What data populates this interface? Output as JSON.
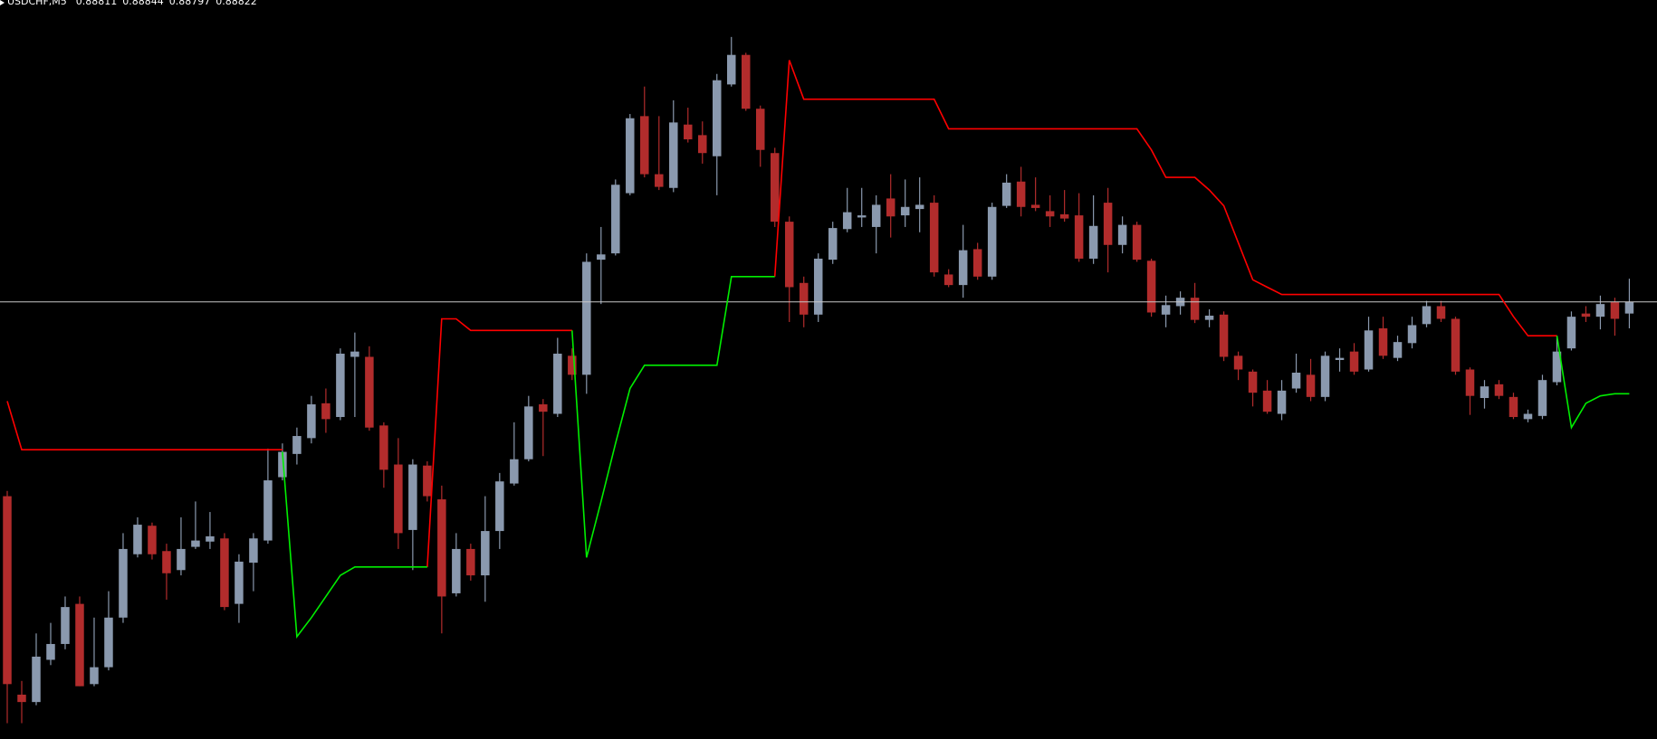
{
  "chart_data": {
    "type": "candlestick",
    "title": "USDCHF,M5",
    "header_values": [
      0.88811,
      0.88844,
      0.88797,
      0.88822
    ],
    "ylim": [
      0.88408,
      0.89108
    ],
    "up_color": "#8a99ae",
    "down_color": "#b22c2c",
    "price_line": 0.88822,
    "price_line_color": "#c8c8c8",
    "open": [
      0.88638,
      0.8845,
      0.88443,
      0.88483,
      0.88498,
      0.88536,
      0.8846,
      0.88476,
      0.88523,
      0.88583,
      0.8861,
      0.88586,
      0.88568,
      0.8859,
      0.88595,
      0.88598,
      0.88536,
      0.88575,
      0.88596,
      0.88656,
      0.88678,
      0.88693,
      0.88726,
      0.88713,
      0.8877,
      0.8877,
      0.88705,
      0.88668,
      0.88606,
      0.88667,
      0.88635,
      0.88546,
      0.88588,
      0.88563,
      0.88605,
      0.8865,
      0.88673,
      0.88725,
      0.88716,
      0.88771,
      0.88753,
      0.88862,
      0.88868,
      0.88925,
      0.88998,
      0.88943,
      0.8893,
      0.8899,
      0.8898,
      0.8896,
      0.89028,
      0.89056,
      0.89005,
      0.88963,
      0.88898,
      0.8884,
      0.8881,
      0.88862,
      0.88891,
      0.88902,
      0.88893,
      0.8892,
      0.88904,
      0.8891,
      0.88916,
      0.88848,
      0.88838,
      0.88872,
      0.88846,
      0.88913,
      0.88936,
      0.88914,
      0.88908,
      0.88905,
      0.88904,
      0.88863,
      0.88916,
      0.88876,
      0.88895,
      0.88861,
      0.8881,
      0.88818,
      0.88826,
      0.88805,
      0.8881,
      0.88771,
      0.88756,
      0.88738,
      0.88716,
      0.8874,
      0.88753,
      0.88732,
      0.88767,
      0.88775,
      0.88758,
      0.88797,
      0.88769,
      0.88783,
      0.88801,
      0.88818,
      0.88806,
      0.88758,
      0.88731,
      0.88744,
      0.88732,
      0.88711,
      0.88714,
      0.88746,
      0.88778,
      0.88811,
      0.88808,
      0.88822,
      0.88811
    ],
    "high": [
      0.88643,
      0.88463,
      0.88508,
      0.88518,
      0.88543,
      0.88543,
      0.88523,
      0.88548,
      0.88603,
      0.88618,
      0.88613,
      0.88593,
      0.88618,
      0.88633,
      0.88623,
      0.88603,
      0.88583,
      0.88603,
      0.88683,
      0.88688,
      0.88703,
      0.88733,
      0.8874,
      0.88778,
      0.88793,
      0.8878,
      0.88708,
      0.88693,
      0.88673,
      0.88671,
      0.88648,
      0.88603,
      0.88593,
      0.88638,
      0.8866,
      0.88708,
      0.88733,
      0.8873,
      0.88788,
      0.88778,
      0.88868,
      0.88893,
      0.88938,
      0.89,
      0.89026,
      0.88998,
      0.89013,
      0.89006,
      0.88993,
      0.89038,
      0.89073,
      0.89058,
      0.89008,
      0.88968,
      0.88903,
      0.88846,
      0.88868,
      0.88898,
      0.8893,
      0.8893,
      0.88923,
      0.88943,
      0.88938,
      0.8894,
      0.88923,
      0.88853,
      0.88895,
      0.88878,
      0.88916,
      0.88943,
      0.8895,
      0.8894,
      0.88923,
      0.88928,
      0.88925,
      0.88923,
      0.8893,
      0.88903,
      0.88898,
      0.88863,
      0.88828,
      0.88832,
      0.8884,
      0.88815,
      0.88813,
      0.88775,
      0.88758,
      0.88748,
      0.88748,
      0.88773,
      0.88768,
      0.88775,
      0.88778,
      0.88783,
      0.88808,
      0.88808,
      0.8879,
      0.88808,
      0.88823,
      0.88823,
      0.88808,
      0.8876,
      0.88748,
      0.88748,
      0.88736,
      0.8872,
      0.88753,
      0.8879,
      0.88813,
      0.88818,
      0.88828,
      0.88826,
      0.88844
    ],
    "low": [
      0.88423,
      0.88423,
      0.8844,
      0.88478,
      0.88493,
      0.88458,
      0.88458,
      0.88473,
      0.88518,
      0.8858,
      0.88578,
      0.8854,
      0.88563,
      0.88588,
      0.88588,
      0.8853,
      0.88518,
      0.88548,
      0.88593,
      0.88653,
      0.88668,
      0.88688,
      0.88698,
      0.8871,
      0.88713,
      0.887,
      0.88646,
      0.88588,
      0.88568,
      0.88633,
      0.88508,
      0.88543,
      0.88558,
      0.88538,
      0.88588,
      0.88648,
      0.88671,
      0.88676,
      0.88713,
      0.88748,
      0.88735,
      0.8882,
      0.88866,
      0.88923,
      0.8894,
      0.88928,
      0.88926,
      0.88973,
      0.88953,
      0.88923,
      0.89026,
      0.89003,
      0.8895,
      0.88893,
      0.88803,
      0.88798,
      0.88803,
      0.88858,
      0.88888,
      0.88893,
      0.88868,
      0.88883,
      0.88893,
      0.88888,
      0.88846,
      0.88836,
      0.88826,
      0.88843,
      0.88843,
      0.88911,
      0.88903,
      0.88908,
      0.88893,
      0.88898,
      0.8886,
      0.88858,
      0.8885,
      0.88868,
      0.8886,
      0.88808,
      0.88798,
      0.8881,
      0.88802,
      0.88798,
      0.88766,
      0.88748,
      0.88723,
      0.88716,
      0.8871,
      0.88736,
      0.88728,
      0.88728,
      0.88756,
      0.88753,
      0.88756,
      0.88768,
      0.88766,
      0.88778,
      0.88798,
      0.88803,
      0.88753,
      0.88715,
      0.88721,
      0.8873,
      0.88711,
      0.88708,
      0.88711,
      0.88743,
      0.88776,
      0.88803,
      0.88796,
      0.8879,
      0.88797
    ],
    "close": [
      0.8846,
      0.88443,
      0.88486,
      0.88498,
      0.88533,
      0.88458,
      0.88476,
      0.88523,
      0.88588,
      0.88611,
      0.88583,
      0.88565,
      0.88588,
      0.88596,
      0.886,
      0.88533,
      0.88576,
      0.88598,
      0.88653,
      0.8868,
      0.88695,
      0.88725,
      0.88711,
      0.88773,
      0.88775,
      0.88703,
      0.88663,
      0.88603,
      0.88668,
      0.88638,
      0.88543,
      0.88588,
      0.88563,
      0.88605,
      0.88652,
      0.88673,
      0.88723,
      0.88718,
      0.88773,
      0.88753,
      0.8886,
      0.88867,
      0.88933,
      0.88996,
      0.88943,
      0.88931,
      0.88992,
      0.88976,
      0.88963,
      0.89032,
      0.89056,
      0.89005,
      0.88966,
      0.88898,
      0.88836,
      0.8881,
      0.88863,
      0.88892,
      0.88907,
      0.88904,
      0.88914,
      0.88903,
      0.88912,
      0.88914,
      0.8885,
      0.88838,
      0.88871,
      0.88846,
      0.88912,
      0.88935,
      0.88912,
      0.88911,
      0.88903,
      0.88901,
      0.88863,
      0.88894,
      0.88876,
      0.88895,
      0.88862,
      0.88812,
      0.88819,
      0.88826,
      0.88805,
      0.88809,
      0.8877,
      0.88758,
      0.88736,
      0.88718,
      0.88738,
      0.88755,
      0.88732,
      0.88771,
      0.88769,
      0.88756,
      0.88795,
      0.88771,
      0.88784,
      0.888,
      0.88818,
      0.88806,
      0.88756,
      0.88733,
      0.88742,
      0.88733,
      0.88713,
      0.88716,
      0.88748,
      0.88775,
      0.88808,
      0.88808,
      0.8882,
      0.88806,
      0.88822
    ],
    "lines": [
      {
        "color": "#ff0000",
        "values": [
          0.88728,
          0.88682,
          0.88682,
          0.88682,
          0.88682,
          0.88682,
          0.88682,
          0.88682,
          0.88682,
          0.88682,
          0.88682,
          0.88682,
          0.88682,
          0.88682,
          0.88682,
          0.88682,
          0.88682,
          0.88682,
          0.88682,
          0.88682,
          null,
          null,
          null,
          null,
          null,
          null,
          null,
          null,
          null,
          0.88571,
          0.88806,
          0.88806,
          0.88795,
          0.88795,
          0.88795,
          0.88795,
          0.88795,
          0.88795,
          0.88795,
          0.88795,
          null,
          null,
          null,
          null,
          null,
          null,
          null,
          null,
          null,
          null,
          null,
          null,
          null,
          0.88846,
          0.89051,
          0.89014,
          0.89014,
          0.89014,
          0.89014,
          0.89014,
          0.89014,
          0.89014,
          0.89014,
          0.89014,
          0.89014,
          0.88986,
          0.88986,
          0.88986,
          0.88986,
          0.88986,
          0.88986,
          0.88986,
          0.88986,
          0.88986,
          0.88986,
          0.88986,
          0.88986,
          0.88986,
          0.88986,
          0.88966,
          0.8894,
          0.8894,
          0.8894,
          0.88928,
          0.88913,
          0.88878,
          0.88843,
          0.88836,
          0.88829,
          0.88829,
          0.88829,
          0.88829,
          0.88829,
          0.88829,
          0.88829,
          0.88829,
          0.88829,
          0.88829,
          0.88829,
          0.88829,
          0.88829,
          0.88829,
          0.88829,
          0.88829,
          0.88808,
          0.8879,
          0.8879,
          0.8879,
          null,
          null,
          null,
          null,
          null
        ]
      },
      {
        "color": "#00ee00",
        "values": [
          null,
          null,
          null,
          null,
          null,
          null,
          null,
          null,
          null,
          null,
          null,
          null,
          null,
          null,
          null,
          null,
          null,
          null,
          null,
          0.8868,
          0.88505,
          0.88523,
          0.88543,
          0.88563,
          0.88571,
          0.88571,
          0.88571,
          0.88571,
          0.88571,
          0.88571,
          null,
          null,
          null,
          null,
          null,
          null,
          null,
          null,
          null,
          0.88795,
          0.8858,
          0.88633,
          0.88688,
          0.8874,
          0.88762,
          0.88762,
          0.88762,
          0.88762,
          0.88762,
          0.88762,
          0.88846,
          0.88846,
          0.88846,
          0.88846,
          null,
          null,
          null,
          null,
          null,
          null,
          null,
          null,
          null,
          null,
          null,
          null,
          null,
          null,
          null,
          null,
          null,
          null,
          null,
          null,
          null,
          null,
          null,
          null,
          null,
          null,
          null,
          null,
          null,
          null,
          null,
          null,
          null,
          null,
          null,
          null,
          null,
          null,
          null,
          null,
          null,
          null,
          null,
          null,
          null,
          null,
          null,
          null,
          null,
          null,
          null,
          null,
          null,
          0.8879,
          0.88703,
          0.88726,
          0.88733,
          0.88735,
          0.88735
        ]
      }
    ]
  }
}
